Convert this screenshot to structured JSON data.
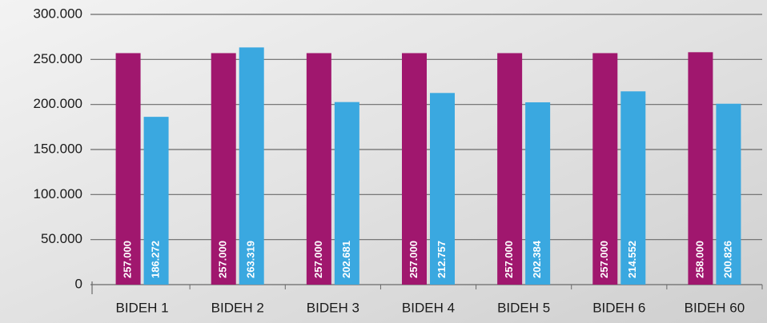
{
  "chart_data": {
    "type": "bar",
    "categories": [
      "BIDEH 1",
      "BIDEH 2",
      "BIDEH 3",
      "BIDEH 4",
      "BIDEH 5",
      "BIDEH 6",
      "BIDEH 60"
    ],
    "series": [
      {
        "color": "#a0176e",
        "values": [
          257000,
          257000,
          257000,
          257000,
          257000,
          257000,
          258000
        ],
        "value_labels": [
          "257.000",
          "257.000",
          "257.000",
          "257.000",
          "257.000",
          "257.000",
          "258.000"
        ]
      },
      {
        "color": "#3aa8e0",
        "values": [
          186272,
          263319,
          202681,
          212757,
          202384,
          214552,
          200826
        ],
        "value_labels": [
          "186.272",
          "263.319",
          "202.681",
          "212.757",
          "202.384",
          "214.552",
          "200.826"
        ]
      }
    ],
    "ylim": [
      0,
      300000
    ],
    "yticks": [
      0,
      {
        "value": 50000,
        "label": "50.000"
      },
      {
        "value": 100000,
        "label": "100.000"
      },
      {
        "value": 150000,
        "label": "150.000"
      },
      {
        "value": 200000,
        "label": "200.000"
      },
      {
        "value": 250000,
        "label": "250.000"
      },
      {
        "value": 300000,
        "label": "300.000"
      }
    ],
    "grid": true
  }
}
